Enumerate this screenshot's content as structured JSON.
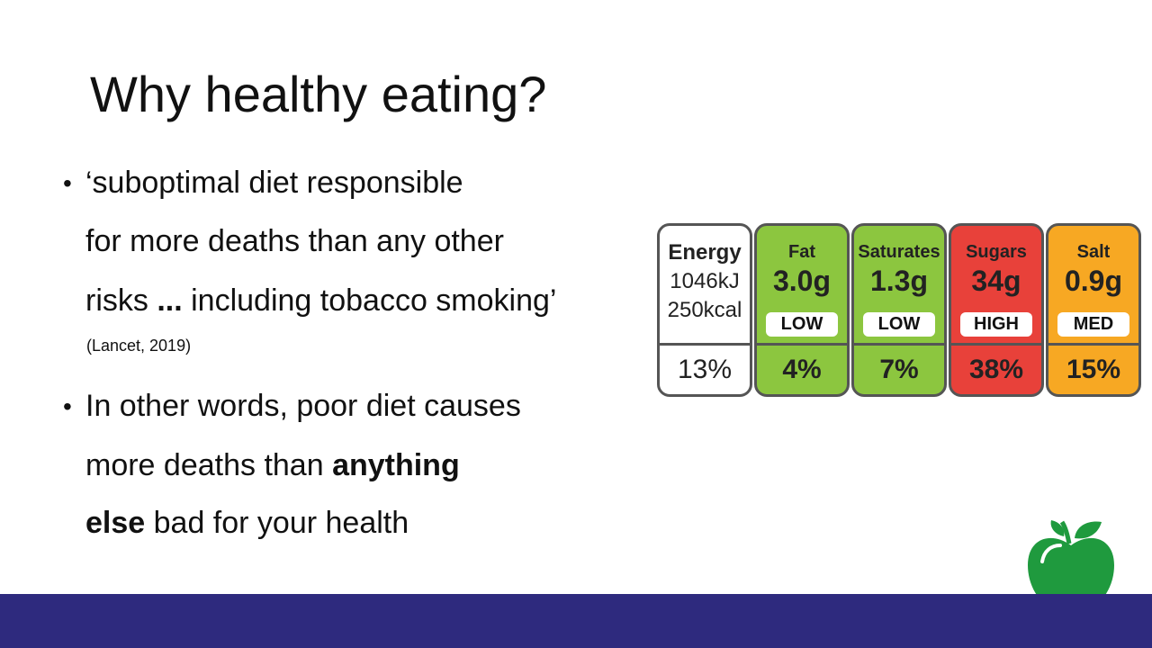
{
  "slide": {
    "title": "Why healthy eating?",
    "bullets": [
      {
        "lines": [
          [
            {
              "text": "‘suboptimal diet responsible",
              "bold": false
            }
          ],
          [
            {
              "text": "for more deaths than any other",
              "bold": false
            }
          ],
          [
            {
              "text": "risks ",
              "bold": false
            },
            {
              "text": "...",
              "bold": true
            },
            {
              "text": " including tobacco smoking’",
              "bold": false
            }
          ]
        ],
        "citation": "(Lancet, 2019)"
      },
      {
        "lines": [
          [
            {
              "text": "In other words, poor diet causes",
              "bold": false
            }
          ],
          [
            {
              "text": "more deaths than ",
              "bold": false
            },
            {
              "text": "anything",
              "bold": true
            }
          ],
          [
            {
              "text": "else",
              "bold": true
            },
            {
              "text": " bad for your health",
              "bold": false
            }
          ]
        ]
      }
    ],
    "food_label": {
      "columns": [
        {
          "name": "Energy",
          "amounts": [
            "1046kJ",
            "250kcal"
          ],
          "percent": "13%",
          "color": "#ffffff"
        },
        {
          "name": "Fat",
          "amounts": [
            "3.0g"
          ],
          "level": "LOW",
          "percent": "4%",
          "color": "#8cc63f"
        },
        {
          "name": "Saturates",
          "amounts": [
            "1.3g"
          ],
          "level": "LOW",
          "percent": "7%",
          "color": "#8cc63f"
        },
        {
          "name": "Sugars",
          "amounts": [
            "34g"
          ],
          "level": "HIGH",
          "percent": "38%",
          "color": "#e8413a"
        },
        {
          "name": "Salt",
          "amounts": [
            "0.9g"
          ],
          "level": "MED",
          "percent": "15%",
          "color": "#f7a823"
        }
      ]
    }
  }
}
